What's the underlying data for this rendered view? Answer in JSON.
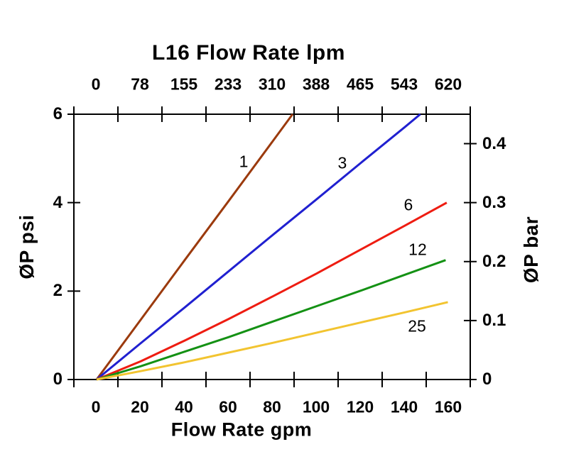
{
  "axes": {
    "top": {
      "title": "L16 Flow Rate lpm",
      "tick_labels": [
        "0",
        "78",
        "155",
        "233",
        "310",
        "388",
        "465",
        "543",
        "620"
      ]
    },
    "bottom": {
      "title": "Flow Rate gpm",
      "tick_labels": [
        "0",
        "20",
        "40",
        "60",
        "80",
        "100",
        "120",
        "140",
        "160"
      ]
    },
    "left": {
      "title": "ØP psi",
      "tick_labels": [
        "0",
        "2",
        "4",
        "6"
      ],
      "tick_values": [
        0,
        2,
        4,
        6
      ],
      "range": [
        0,
        6
      ]
    },
    "right": {
      "title": "ØP bar",
      "tick_labels": [
        "0",
        "0.1",
        "0.2",
        "0.3",
        "0.4"
      ],
      "tick_values": [
        0,
        0.1,
        0.2,
        0.3,
        0.4
      ],
      "range": [
        0,
        0.45
      ]
    }
  },
  "chart_data": {
    "type": "line",
    "title": "L16 Flow Rate lpm",
    "xlabel": "Flow Rate gpm",
    "x2label": "L16 Flow Rate lpm",
    "ylabel": "ØP psi",
    "y2label": "ØP bar",
    "xlim": [
      0,
      160
    ],
    "ylim": [
      0,
      6
    ],
    "y2lim": [
      0,
      0.45
    ],
    "x_tick_count": 10,
    "x_labels_centered_between_ticks": true,
    "grid": false,
    "legend_position": "inline-labels",
    "series": [
      {
        "name": "1",
        "color": "#9B3A0D",
        "points": [
          [
            0,
            0
          ],
          [
            20,
            1.35
          ],
          [
            40,
            2.7
          ],
          [
            60,
            4.04
          ],
          [
            80,
            5.39
          ],
          [
            89,
            6.0
          ]
        ],
        "label_at": [
          66.8,
          4.93
        ]
      },
      {
        "name": "3",
        "color": "#2020D0",
        "points": [
          [
            0,
            0
          ],
          [
            20,
            0.82
          ],
          [
            40,
            1.63
          ],
          [
            60,
            2.45
          ],
          [
            80,
            3.27
          ],
          [
            100,
            4.08
          ],
          [
            120,
            4.9
          ],
          [
            140,
            5.71
          ],
          [
            147,
            6.0
          ]
        ],
        "label_at": [
          111.6,
          4.9
        ]
      },
      {
        "name": "6",
        "color": "#EE1C11",
        "points": [
          [
            0,
            0
          ],
          [
            20,
            0.41
          ],
          [
            40,
            0.88
          ],
          [
            60,
            1.37
          ],
          [
            80,
            1.88
          ],
          [
            100,
            2.4
          ],
          [
            120,
            2.94
          ],
          [
            140,
            3.48
          ],
          [
            159,
            4.0
          ]
        ],
        "label_at": [
          141.6,
          3.95
        ]
      },
      {
        "name": "12",
        "color": "#149114",
        "points": [
          [
            0,
            0
          ],
          [
            20,
            0.3
          ],
          [
            40,
            0.63
          ],
          [
            60,
            0.96
          ],
          [
            80,
            1.31
          ],
          [
            100,
            1.66
          ],
          [
            120,
            2.01
          ],
          [
            140,
            2.37
          ],
          [
            158.5,
            2.7
          ]
        ],
        "label_at": [
          145.8,
          2.94
        ]
      },
      {
        "name": "25",
        "color": "#F2C430",
        "points": [
          [
            0,
            0
          ],
          [
            20,
            0.19
          ],
          [
            40,
            0.39
          ],
          [
            60,
            0.61
          ],
          [
            80,
            0.83
          ],
          [
            100,
            1.06
          ],
          [
            120,
            1.29
          ],
          [
            140,
            1.52
          ],
          [
            159.5,
            1.75
          ]
        ],
        "label_at": [
          145.5,
          1.2
        ]
      }
    ]
  }
}
